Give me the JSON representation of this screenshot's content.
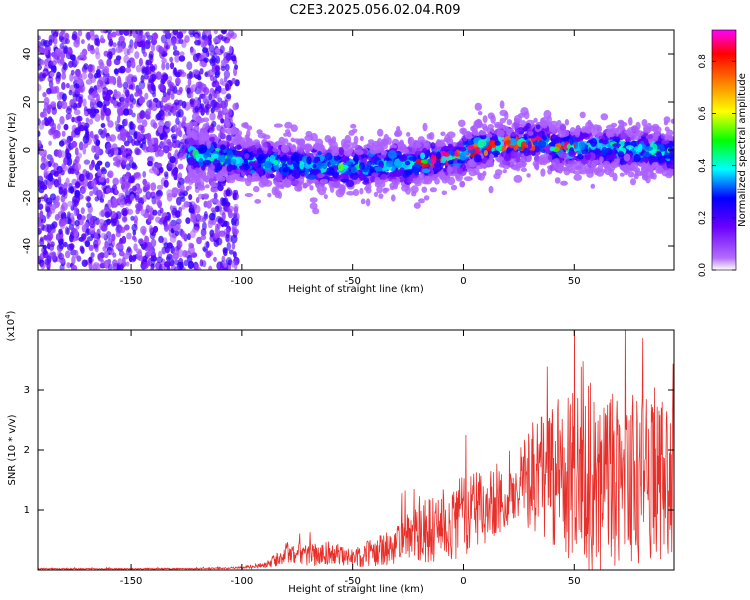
{
  "title": "C2E3.2025.056.02.04.R09",
  "colors": {
    "snr_line": "#e8302b",
    "scatter": "#7a1fe8",
    "frame": "#000000"
  },
  "chart_data": [
    {
      "type": "heatmap",
      "xlabel": "Height of straight line (km)",
      "ylabel": "Frequency (Hz)",
      "xlim": [
        -192,
        95
      ],
      "ylim": [
        -50,
        50
      ],
      "xticks": [
        -150,
        -100,
        -50,
        0,
        50
      ],
      "yticks": [
        -40,
        -20,
        0,
        20,
        40
      ],
      "colorbar": {
        "label": "Normalized spectral amplitude",
        "range": [
          0,
          0.92
        ],
        "ticks": [
          0.0,
          0.2,
          0.4,
          0.6,
          0.8
        ],
        "colormap": "rainbow"
      },
      "description_regions": [
        {
          "x_range": [
            -192,
            -102
          ],
          "y_center": 0,
          "spread": 50,
          "mean_amplitude": 0.12
        },
        {
          "x_range": [
            -125,
            95
          ],
          "y_center": 0,
          "spread": 10,
          "mean_amplitude": 0.35
        }
      ]
    },
    {
      "type": "line",
      "xlabel": "Height of straight line (km)",
      "ylabel": "SNR (10 * v/v)",
      "y_multiplier": "(x10",
      "y_multiplier_exp": "4",
      "y_multiplier_close": ")",
      "xlim": [
        -192,
        95
      ],
      "ylim": [
        0,
        4.0
      ],
      "xticks": [
        -150,
        -100,
        -50,
        0,
        50
      ],
      "yticks": [
        1,
        2,
        3
      ],
      "series": [
        {
          "x": [
            -192,
            -120,
            -100,
            -90,
            -85,
            -80,
            -70,
            -60,
            -50,
            -40,
            -30,
            -20,
            -10,
            0,
            10,
            20,
            25,
            30,
            40,
            50,
            60,
            70,
            80,
            90,
            95
          ],
          "y": [
            0.02,
            0.02,
            0.04,
            0.08,
            0.15,
            0.3,
            0.25,
            0.28,
            0.2,
            0.3,
            0.45,
            0.6,
            0.75,
            0.9,
            1.05,
            1.2,
            1.4,
            1.5,
            1.6,
            1.55,
            1.55,
            1.5,
            1.5,
            1.45,
            1.4
          ],
          "spread": [
            0.01,
            0.01,
            0.02,
            0.05,
            0.1,
            0.2,
            0.2,
            0.2,
            0.15,
            0.25,
            0.35,
            0.5,
            0.6,
            0.7,
            0.6,
            0.5,
            0.6,
            0.9,
            1.3,
            1.5,
            1.6,
            1.5,
            1.4,
            1.4,
            1.3
          ]
        }
      ]
    }
  ]
}
